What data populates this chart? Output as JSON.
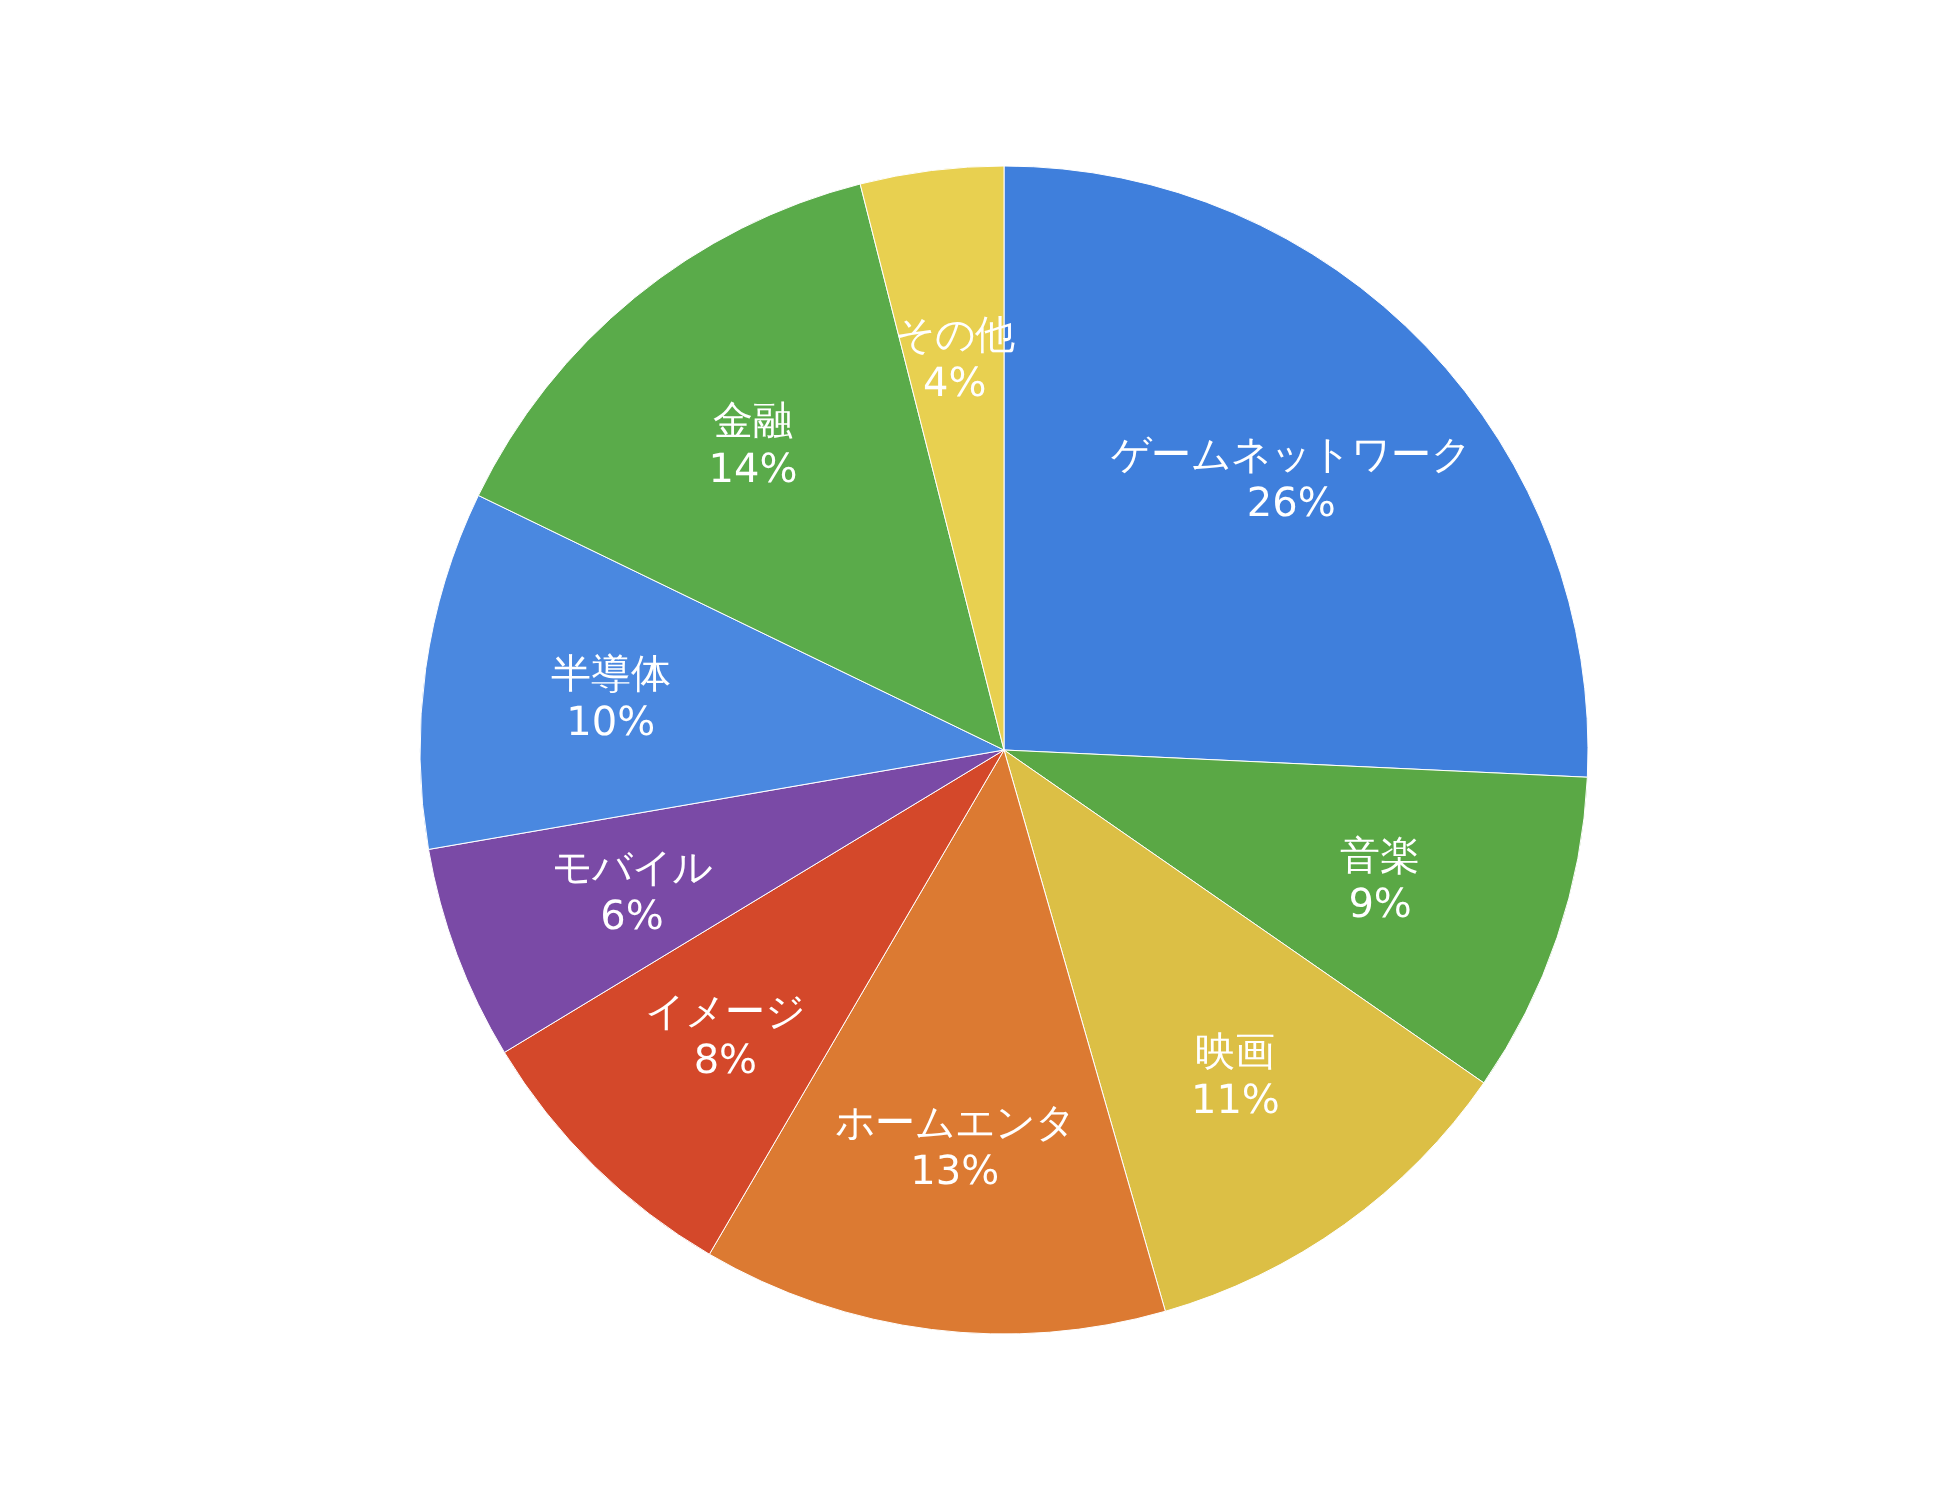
{
  "chart_data": {
    "type": "pie",
    "categories": [
      "ゲームネットワーク",
      "音楽",
      "映画",
      "ホームエンタ",
      "イメージ",
      "モバイル",
      "半導体",
      "金融",
      "その他"
    ],
    "values": [
      26,
      9,
      11,
      13,
      8,
      6,
      10,
      14,
      4
    ],
    "value_labels": [
      "26%",
      "9%",
      "11%",
      "13%",
      "8%",
      "6%",
      "10%",
      "14%",
      "4%"
    ],
    "colors": [
      "#3f7fdc",
      "#5aa845",
      "#dcbf45",
      "#dc7a32",
      "#d4482a",
      "#7a4aa6",
      "#4a88e0",
      "#5aab4a",
      "#e8d050"
    ]
  }
}
